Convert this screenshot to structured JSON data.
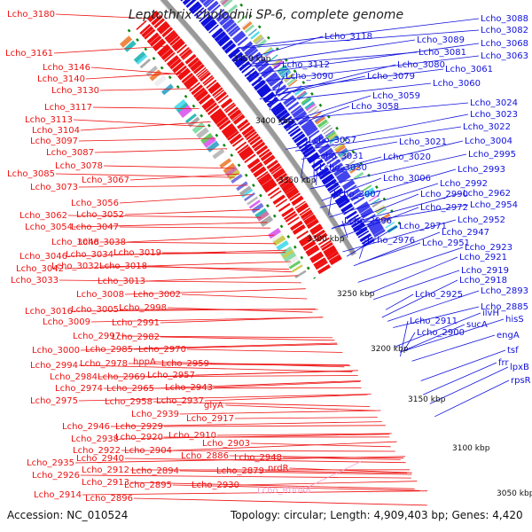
{
  "title": "Leptothrix cholodnii SP-6, complete genome",
  "accession": "Accession: NC_010524",
  "topology": "Topology: circular; Length: 4,909,403 bp; Genes: 4,420",
  "colors": {
    "forward": "#ee1111",
    "reverse": "#1111dd",
    "rna": "#f4a6d0",
    "ticks": "#118811",
    "backbone": "#999999"
  },
  "kbp_labels": [
    "3450 kbp",
    "3400 kbp",
    "3350 kbp",
    "3300 kbp",
    "3250 kbp",
    "3200 kbp",
    "3150 kbp",
    "3100 kbp",
    "3050 kbp"
  ],
  "left_labels": [
    "Lcho_3180",
    "Lcho_3161",
    "Lcho_3146",
    "Lcho_3140",
    "Lcho_3130",
    "Lcho_3117",
    "Lcho_3113",
    "Lcho_3104",
    "Lcho_3097",
    "Lcho_3087",
    "Lcho_3078",
    "Lcho_3085",
    "Lcho_3067",
    "Lcho_3073",
    "Lcho_3056",
    "Lcho_3052",
    "Lcho_3062",
    "Lcho_3047",
    "Lcho_3054",
    "Lcho_3048",
    "Lcho_3038",
    "Lcho_3019",
    "Lcho_3046",
    "Lcho_3034",
    "Lcho_3042",
    "Lcho_3032",
    "Lcho_3018",
    "Lcho_3033",
    "Lcho_3013",
    "Lcho_3008",
    "Lcho_3002",
    "Lcho_3016",
    "Lcho_3005",
    "Lcho_2998",
    "Lcho_3009",
    "Lcho_2991",
    "Lcho_2997",
    "Lcho_2982",
    "Lcho_3000",
    "Lcho_2985",
    "Lcho_2970",
    "hppA",
    "Lcho_2994",
    "Lcho_2978",
    "Lcho_2959",
    "Lcho_2984",
    "Lcho_2969",
    "Lcho_2957",
    "Lcho_2974",
    "Lcho_2965",
    "Lcho_2943",
    "Lcho_2975",
    "Lcho_2958",
    "Lcho_2937",
    "glyA",
    "Lcho_2939",
    "Lcho_2917",
    "Lcho_2946",
    "Lcho_2929",
    "Lcho_2938",
    "Lcho_2920",
    "Lcho_2910",
    "Lcho_2903",
    "Lcho_2922",
    "Lcho_2904",
    "Lcho_2886",
    "Lcho_2948",
    "Lcho_2935",
    "Lcho_2940",
    "Lcho_2926",
    "Lcho_2912",
    "Lcho_2894",
    "Lcho_2879",
    "nrdR",
    "Lcho_2913",
    "Lcho_2895",
    "Lcho_2930",
    "Lcho_2914",
    "Lcho_2896"
  ],
  "right_labels": [
    "Lcho_3088",
    "Lcho_3082",
    "Lcho_3118",
    "Lcho_3089",
    "Lcho_3068",
    "Lcho_3081",
    "Lcho_3063",
    "Lcho_3112",
    "Lcho_3080",
    "Lcho_3090",
    "Lcho_3079",
    "Lcho_3061",
    "Lcho_3060",
    "Lcho_3059",
    "Lcho_3058",
    "Lcho_3024",
    "Lcho_3023",
    "Lcho_3022",
    "Lcho_3057",
    "Lcho_3021",
    "Lcho_3004",
    "Lcho_3031",
    "Lcho_3020",
    "Lcho_2995",
    "Lcho_3030",
    "Lcho_2993",
    "Lcho_3006",
    "Lcho_2992",
    "Lcho_3007",
    "Lcho_2990",
    "Lcho_2962",
    "Lcho_2972",
    "Lcho_2954",
    "Lcho_2996",
    "Lcho_2971",
    "Lcho_2952",
    "Lcho_2947",
    "Lcho_2976",
    "Lcho_2951",
    "Lcho_2923",
    "Lcho_2921",
    "Lcho_2919",
    "Lcho_2918",
    "Lcho_2925",
    "Lcho_2893",
    "Lcho_2885",
    "ilvH",
    "Lcho_2911",
    "sucA",
    "Lcho_2900",
    "hisS",
    "engA",
    "tsf",
    "frr",
    "lpxB",
    "rpsR"
  ],
  "rna_label": "Lcho_R0048"
}
